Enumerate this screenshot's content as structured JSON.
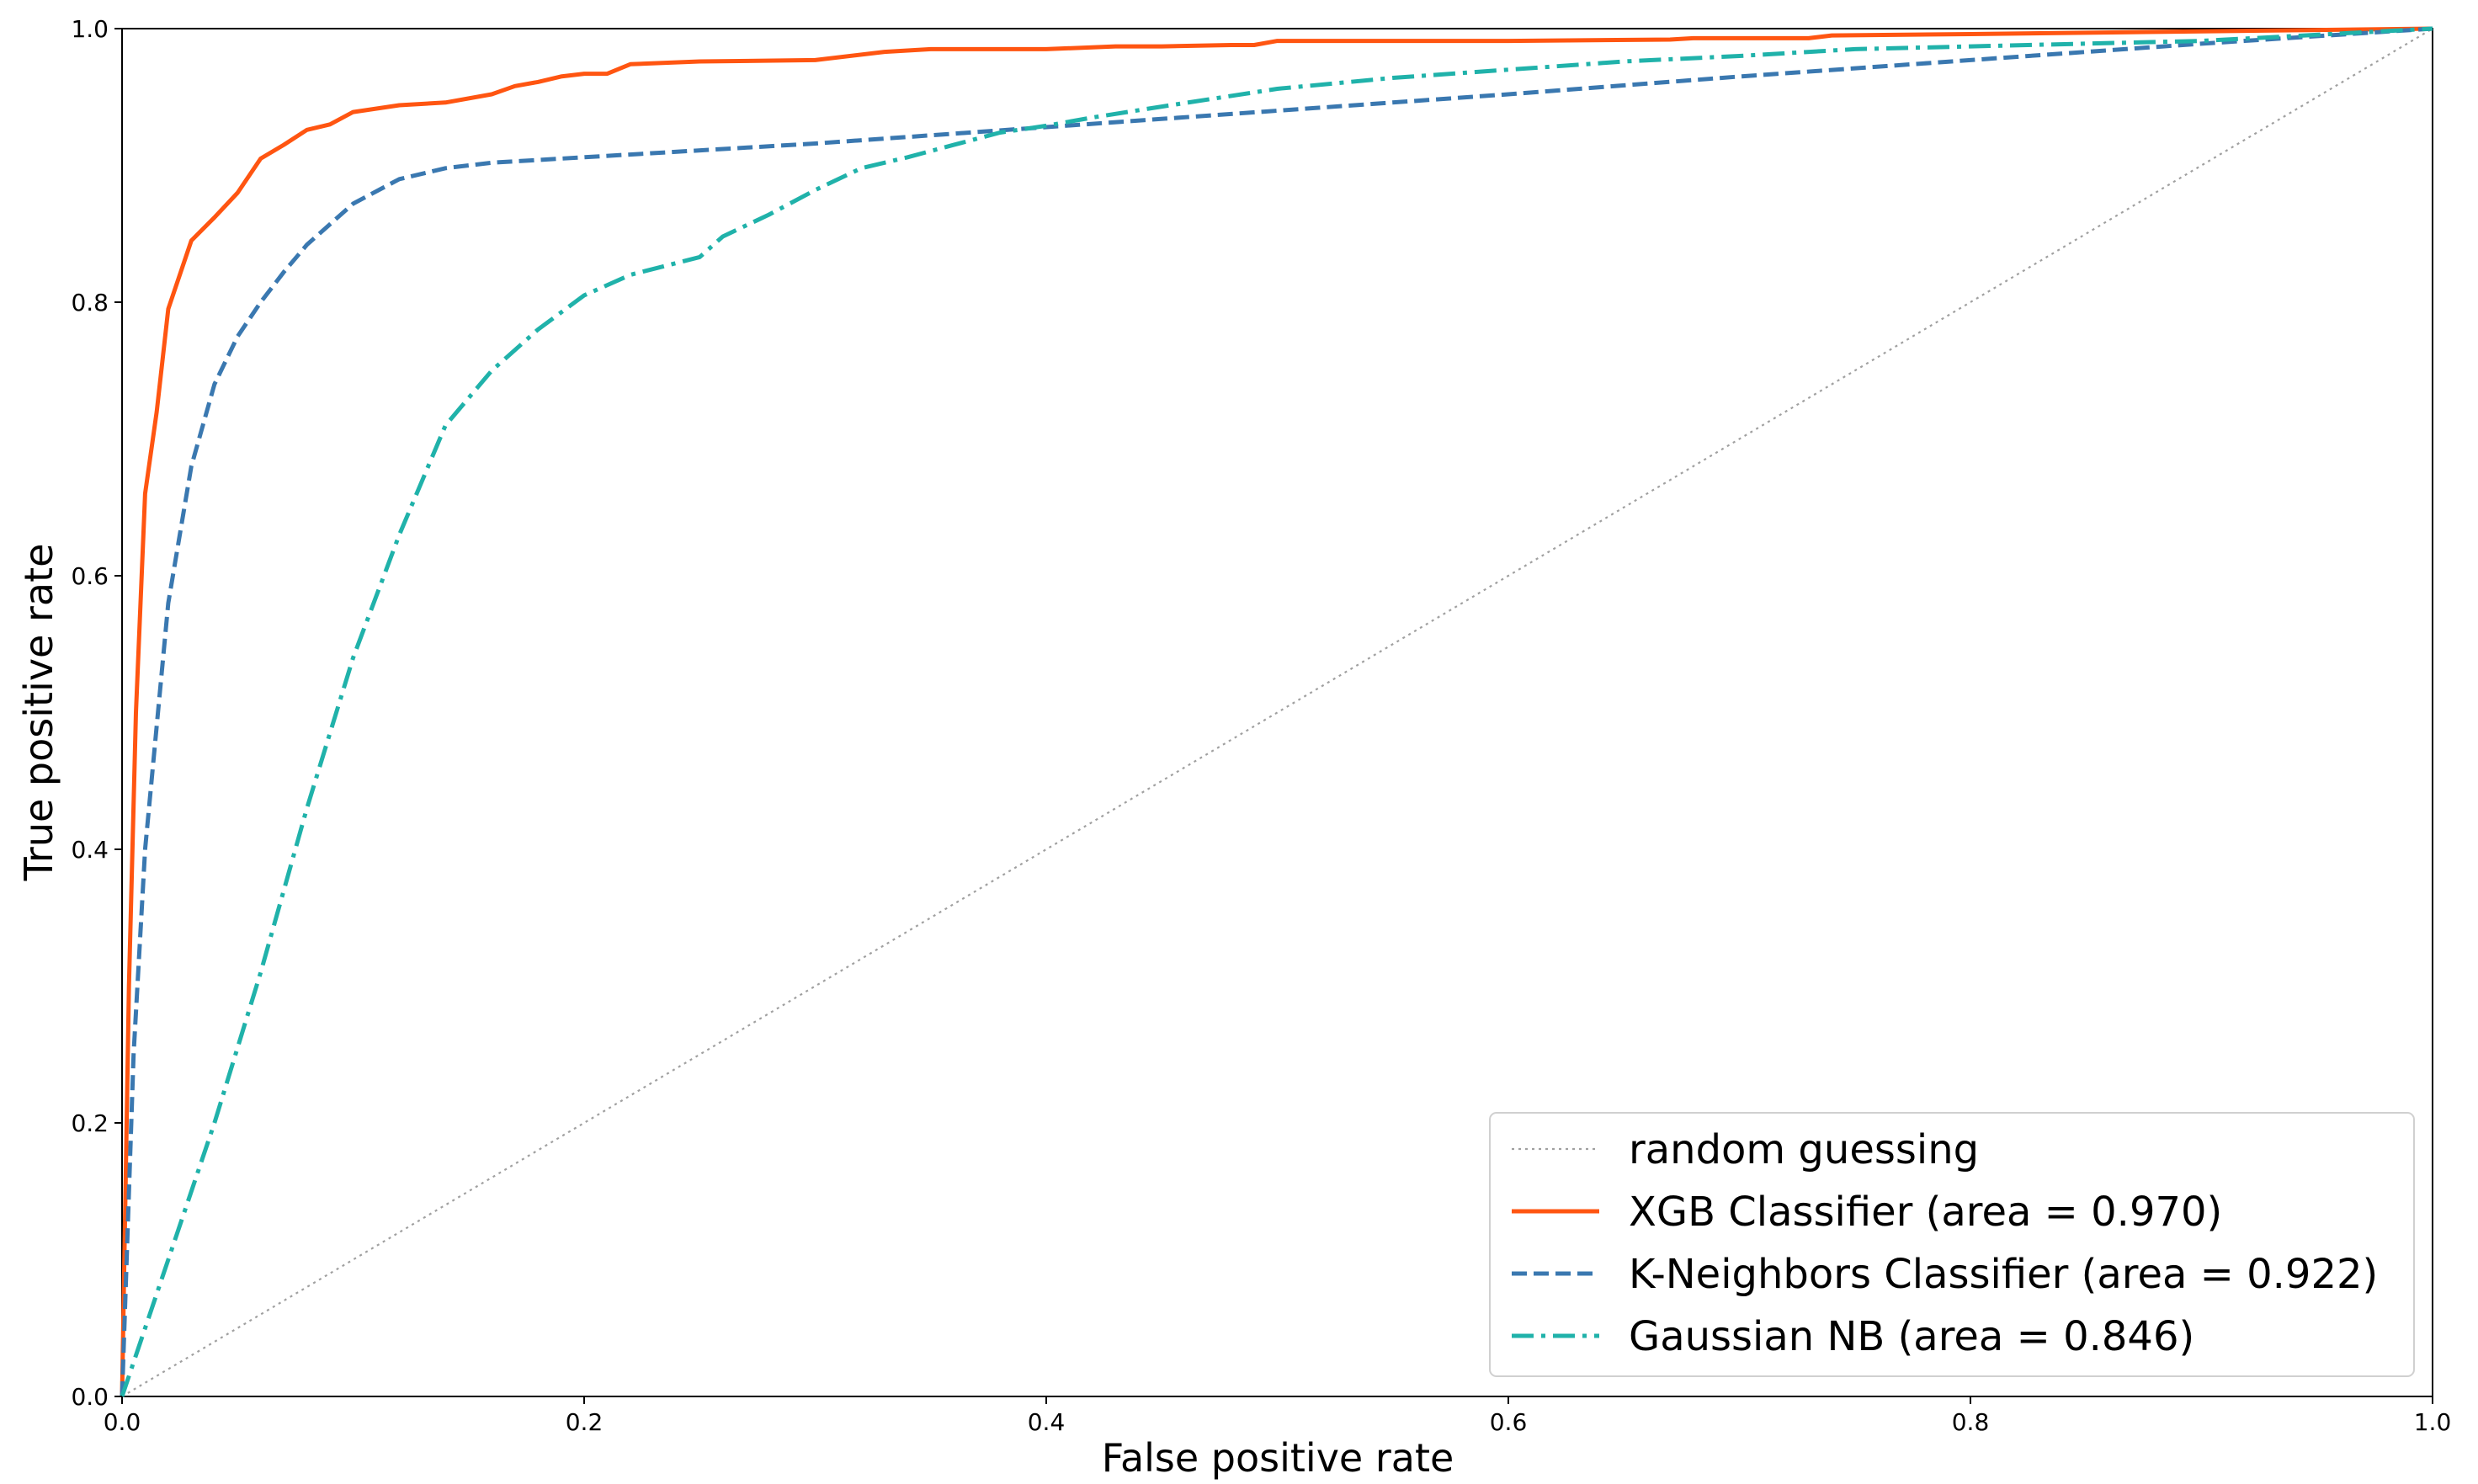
{
  "chart_data": {
    "type": "line",
    "title": "",
    "xlabel": "False positive rate",
    "ylabel": "True positive rate",
    "xlim": [
      0.0,
      1.0
    ],
    "ylim": [
      0.0,
      1.0
    ],
    "grid": false,
    "legend_position": "bottom-right",
    "x_ticks": [
      "0.0",
      "0.2",
      "0.4",
      "0.6",
      "0.8",
      "1.0"
    ],
    "y_ticks": [
      "0.0",
      "0.2",
      "0.4",
      "0.6",
      "0.8",
      "1.0"
    ],
    "series": [
      {
        "name": "random guessing",
        "style": "dotted",
        "color": "#a0a0a0",
        "x": [
          0.0,
          1.0
        ],
        "y": [
          0.0,
          1.0
        ]
      },
      {
        "name": "XGB Classifier (area = 0.970)",
        "style": "solid",
        "color": "#ff5511",
        "x": [
          0.0,
          0.003,
          0.006,
          0.01,
          0.015,
          0.02,
          0.03,
          0.04,
          0.05,
          0.06,
          0.07,
          0.08,
          0.09,
          0.1,
          0.12,
          0.14,
          0.16,
          0.17,
          0.18,
          0.19,
          0.2,
          0.21,
          0.22,
          0.25,
          0.3,
          0.33,
          0.35,
          0.4,
          0.43,
          0.45,
          0.48,
          0.49,
          0.5,
          0.6,
          0.67,
          0.68,
          0.73,
          0.74,
          0.8,
          0.9,
          1.0
        ],
        "y": [
          0.0,
          0.3,
          0.5,
          0.66,
          0.72,
          0.795,
          0.845,
          0.862,
          0.88,
          0.905,
          0.915,
          0.926,
          0.93,
          0.939,
          0.944,
          0.946,
          0.952,
          0.958,
          0.961,
          0.965,
          0.967,
          0.967,
          0.974,
          0.976,
          0.977,
          0.983,
          0.985,
          0.985,
          0.987,
          0.987,
          0.988,
          0.988,
          0.991,
          0.991,
          0.992,
          0.993,
          0.993,
          0.995,
          0.996,
          0.998,
          1.0
        ]
      },
      {
        "name": "K-Neighbors Classifier (area = 0.922)",
        "style": "dashed",
        "color": "#3a78b0",
        "x": [
          0.0,
          0.005,
          0.01,
          0.02,
          0.03,
          0.04,
          0.05,
          0.06,
          0.07,
          0.08,
          0.1,
          0.12,
          0.14,
          0.16,
          0.2,
          0.3,
          0.4,
          0.5,
          0.6,
          0.7,
          0.8,
          0.9,
          1.0
        ],
        "y": [
          0.0,
          0.25,
          0.4,
          0.58,
          0.68,
          0.74,
          0.775,
          0.8,
          0.822,
          0.842,
          0.872,
          0.89,
          0.898,
          0.902,
          0.906,
          0.916,
          0.928,
          0.94,
          0.952,
          0.965,
          0.977,
          0.989,
          1.0
        ]
      },
      {
        "name": "Gaussian NB (area = 0.846)",
        "style": "dashdot",
        "color": "#20b2aa",
        "x": [
          0.0,
          0.02,
          0.04,
          0.06,
          0.08,
          0.1,
          0.12,
          0.14,
          0.16,
          0.18,
          0.2,
          0.22,
          0.25,
          0.26,
          0.28,
          0.3,
          0.32,
          0.34,
          0.36,
          0.38,
          0.4,
          0.42,
          0.45,
          0.5,
          0.55,
          0.6,
          0.65,
          0.7,
          0.75,
          0.8,
          0.9,
          1.0
        ],
        "y": [
          0.0,
          0.1,
          0.2,
          0.31,
          0.43,
          0.54,
          0.63,
          0.71,
          0.75,
          0.78,
          0.805,
          0.82,
          0.833,
          0.848,
          0.864,
          0.882,
          0.898,
          0.906,
          0.915,
          0.924,
          0.929,
          0.935,
          0.943,
          0.956,
          0.964,
          0.97,
          0.976,
          0.98,
          0.985,
          0.987,
          0.991,
          1.0
        ]
      }
    ]
  }
}
